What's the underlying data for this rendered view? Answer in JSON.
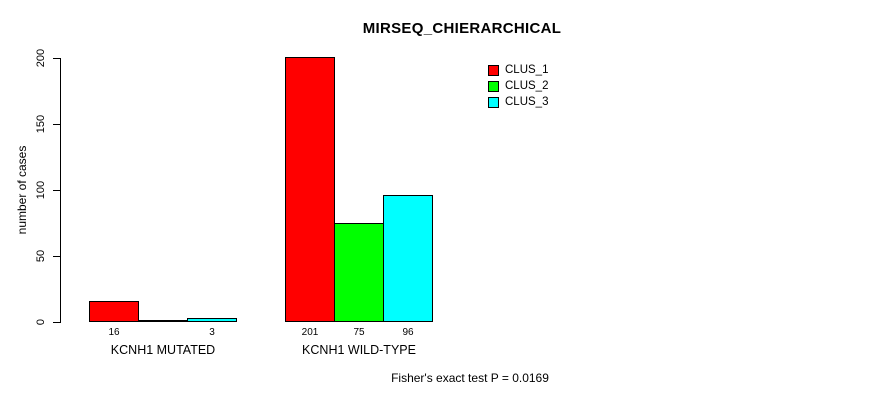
{
  "chart_data": {
    "type": "bar",
    "title": "MIRSEQ_CHIERARCHICAL",
    "xlabel": "",
    "ylabel": "number of cases",
    "ylim": [
      0,
      200
    ],
    "yticks": [
      0,
      50,
      100,
      150,
      200
    ],
    "grid": false,
    "legend_position": "top-right",
    "categories": [
      "KCNH1 MUTATED",
      "KCNH1 WILD-TYPE"
    ],
    "series": [
      {
        "name": "CLUS_1",
        "color": "#ff0000",
        "values": [
          16,
          201
        ]
      },
      {
        "name": "CLUS_2",
        "color": "#00ff00",
        "values": [
          0,
          75
        ]
      },
      {
        "name": "CLUS_3",
        "color": "#00ffff",
        "values": [
          3,
          96
        ]
      }
    ],
    "bar_value_labels": [
      [
        "16",
        null,
        "3"
      ],
      [
        "201",
        "75",
        "96"
      ]
    ],
    "annotation": "Fisher's exact test P = 0.0169"
  },
  "colors": {
    "background": "#ffffff",
    "axis": "#000000",
    "text": "#000000"
  }
}
